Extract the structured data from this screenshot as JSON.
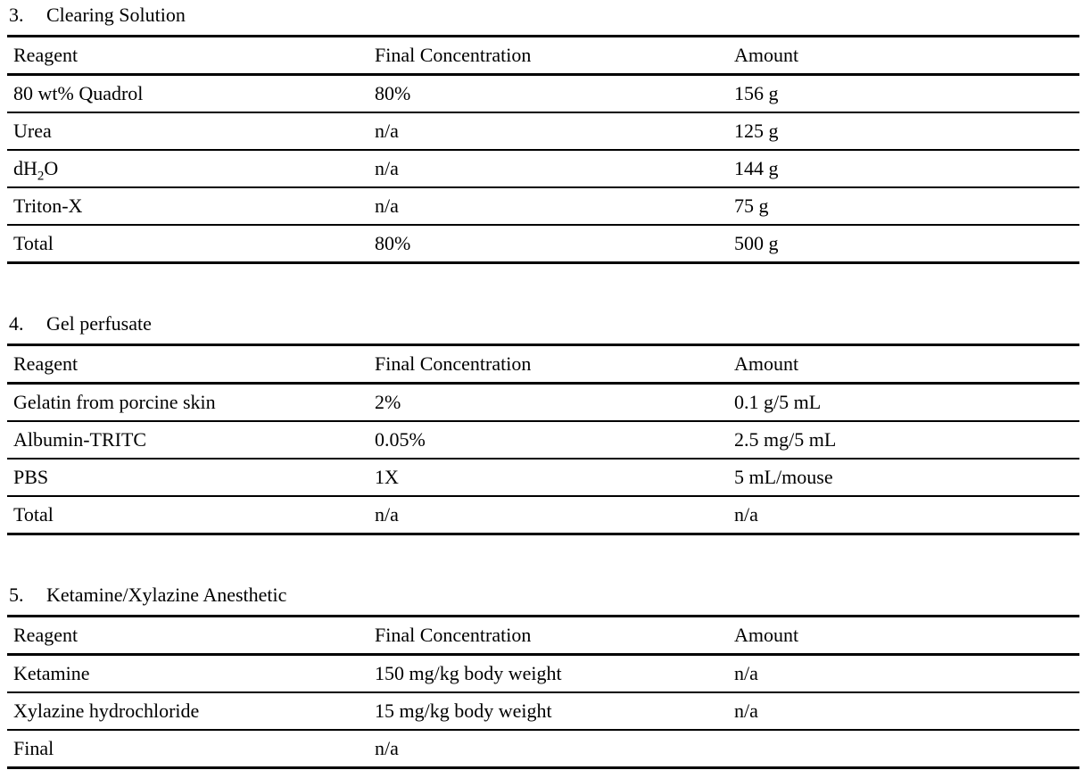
{
  "page": {
    "background_color": "#ffffff",
    "text_color": "#000000",
    "rule_color": "#000000"
  },
  "sections": [
    {
      "number": "3.",
      "title": "Clearing Solution",
      "columns": [
        "Reagent",
        "Final Concentration",
        "Amount"
      ],
      "rows": [
        [
          "80 wt% Quadrol",
          "80%",
          "156 g"
        ],
        [
          "Urea",
          "n/a",
          "125 g"
        ],
        [
          "dH~2~O",
          "n/a",
          "144 g"
        ],
        [
          "Triton-X",
          "n/a",
          "75 g"
        ],
        [
          "Total",
          "80%",
          "500 g"
        ]
      ]
    },
    {
      "number": "4.",
      "title": "Gel perfusate",
      "columns": [
        "Reagent",
        "Final Concentration",
        "Amount"
      ],
      "rows": [
        [
          "Gelatin from porcine skin",
          "2%",
          "0.1 g/5 mL"
        ],
        [
          "Albumin-TRITC",
          "0.05%",
          "2.5 mg/5 mL"
        ],
        [
          "PBS",
          "1X",
          "5 mL/mouse"
        ],
        [
          "Total",
          "n/a",
          "n/a"
        ]
      ]
    },
    {
      "number": "5.",
      "title": "Ketamine/Xylazine Anesthetic",
      "columns": [
        "Reagent",
        "Final Concentration",
        "Amount"
      ],
      "rows": [
        [
          "Ketamine",
          "150 mg/kg body weight",
          "n/a"
        ],
        [
          "Xylazine hydrochloride",
          "15 mg/kg body weight",
          "n/a"
        ],
        [
          "Final",
          "n/a",
          ""
        ]
      ]
    }
  ]
}
